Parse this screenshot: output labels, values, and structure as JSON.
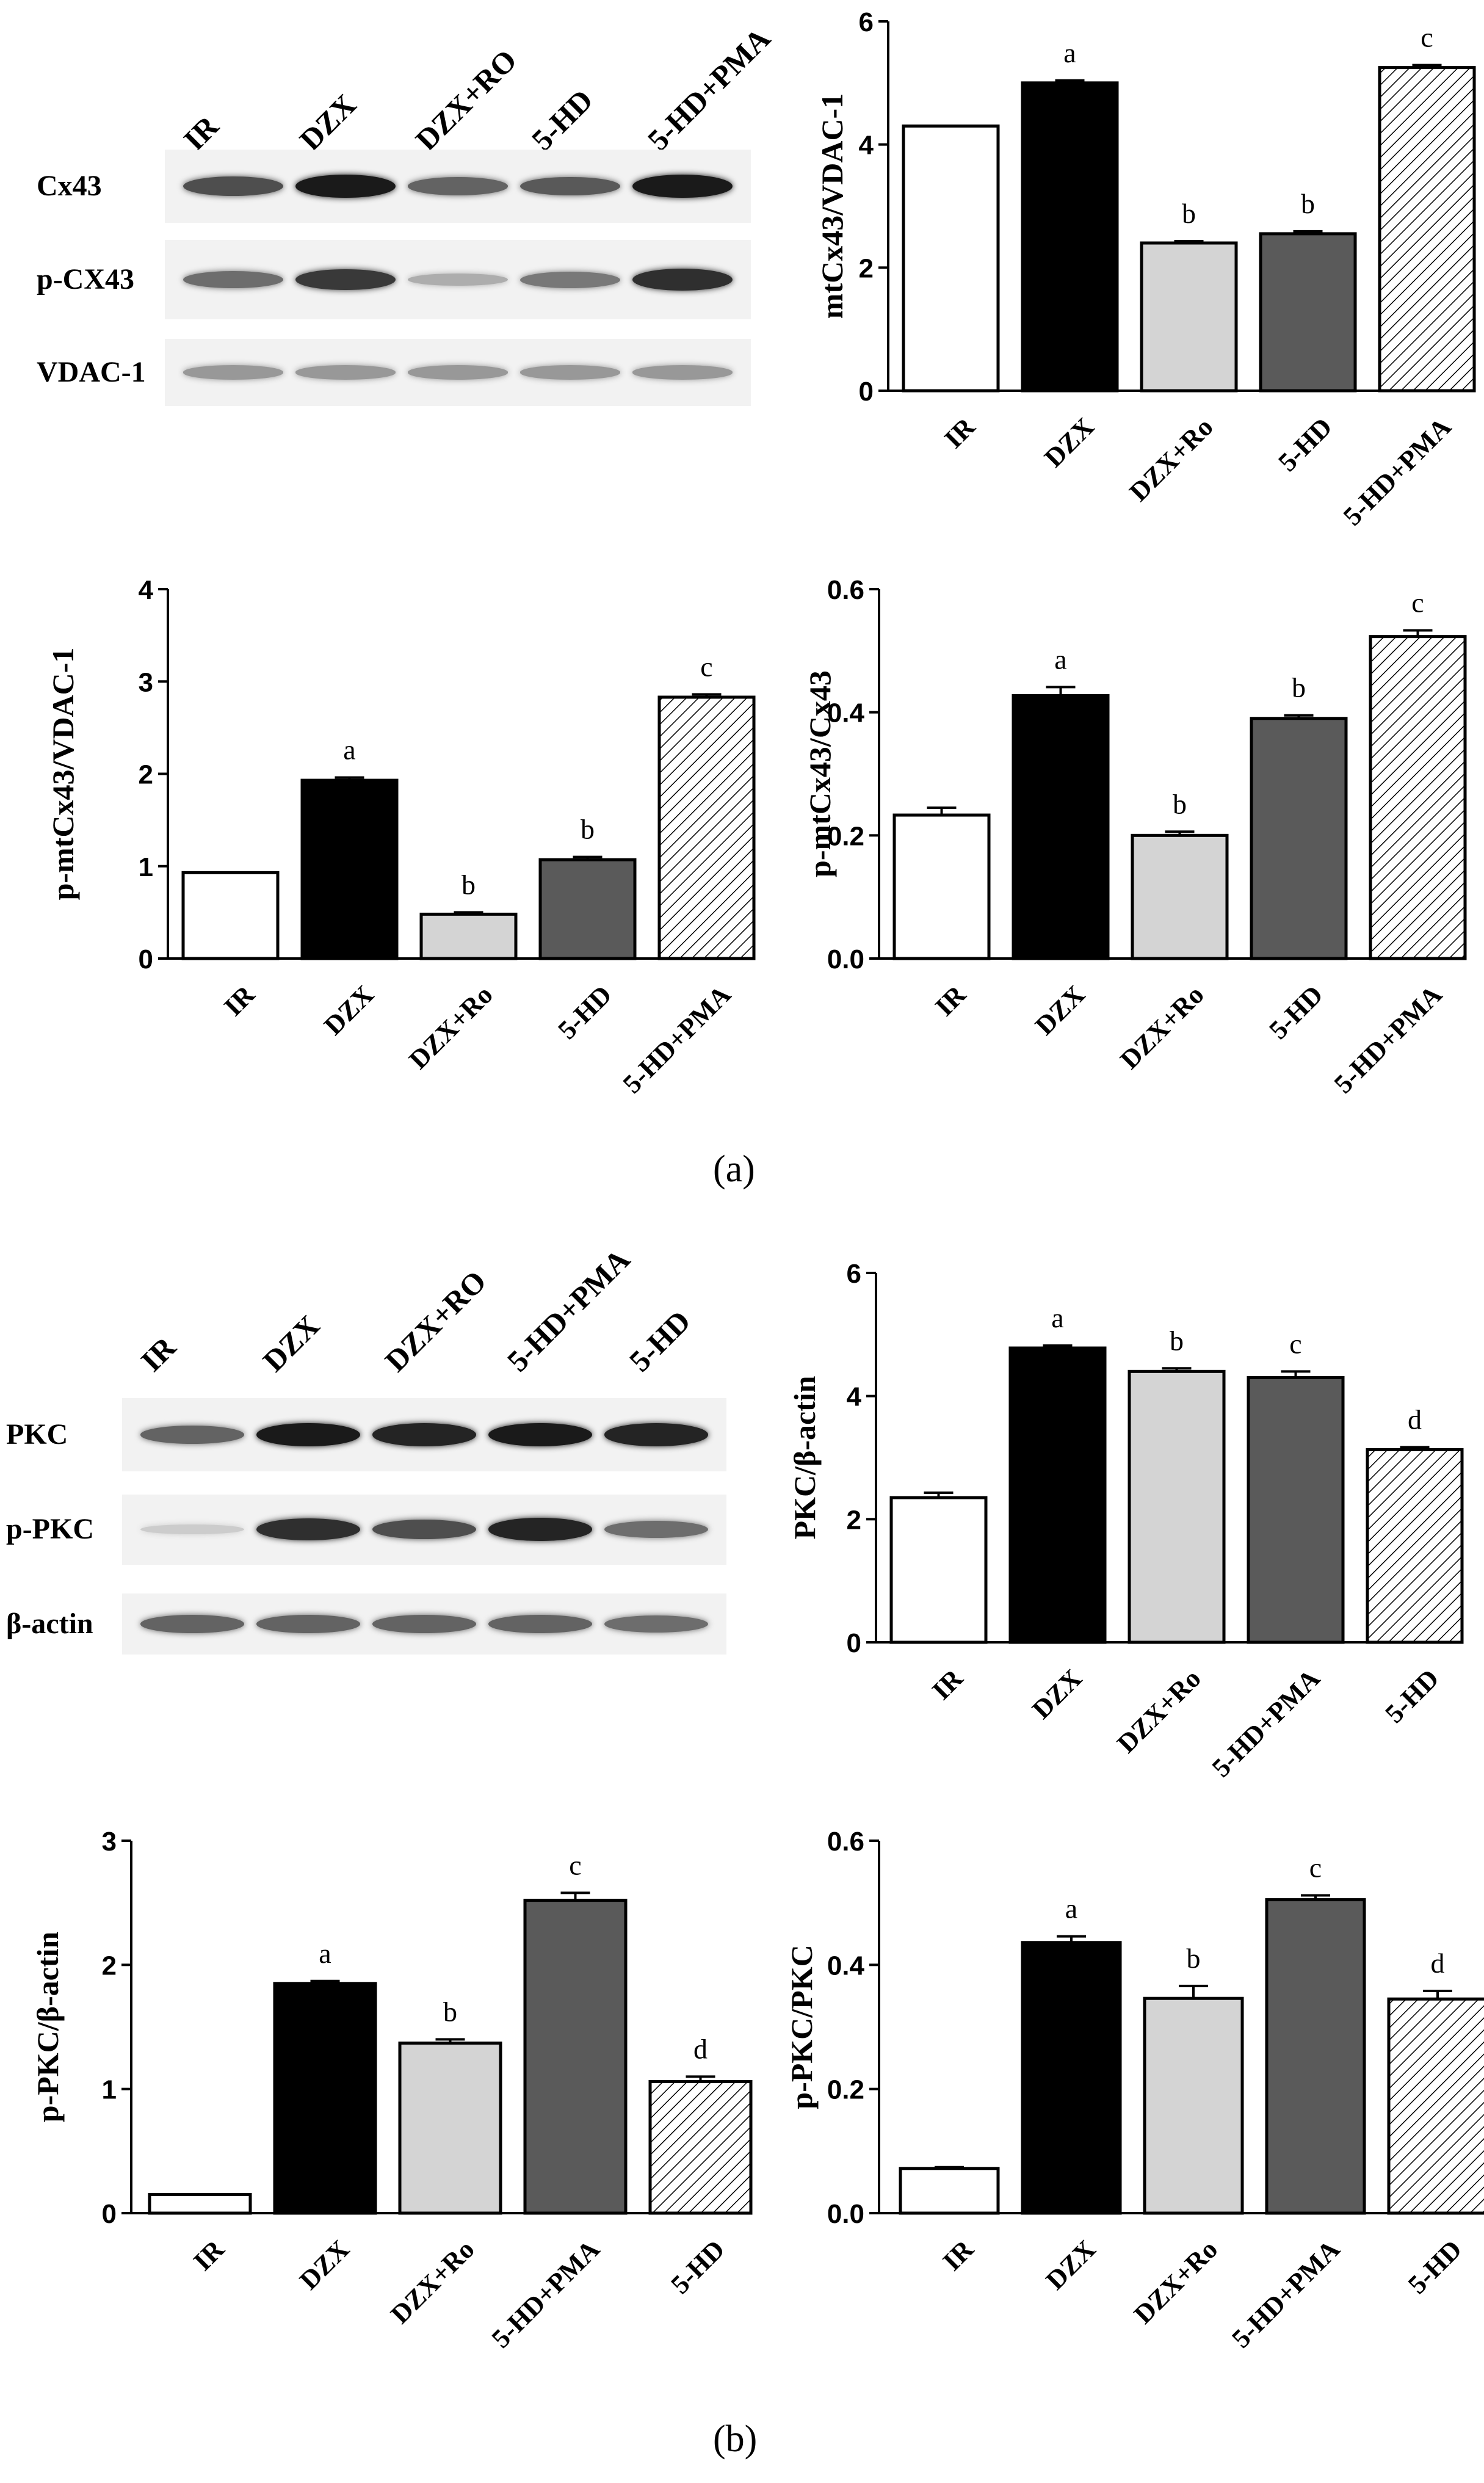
{
  "panels": [
    {
      "label": "(a)",
      "bold": "a"
    },
    {
      "label": "(b)",
      "bold": "b"
    }
  ],
  "blots": [
    {
      "lanes": [
        "IR",
        "DZX",
        "DZX+RO",
        "5-HD",
        "5-HD+PMA"
      ],
      "rows": [
        {
          "name": "Cx43",
          "intensity": [
            0.7,
            0.95,
            0.6,
            0.65,
            0.95
          ]
        },
        {
          "name": "p-CX43",
          "intensity": [
            0.55,
            0.8,
            0.25,
            0.5,
            0.85
          ]
        },
        {
          "name": "VDAC-1",
          "intensity": [
            0.35,
            0.35,
            0.35,
            0.35,
            0.35
          ]
        }
      ]
    },
    {
      "lanes": [
        "IR",
        "DZX",
        "DZX+RO",
        "5-HD+PMA",
        "5-HD"
      ],
      "rows": [
        {
          "name": "PKC",
          "intensity": [
            0.6,
            0.95,
            0.9,
            0.95,
            0.9
          ]
        },
        {
          "name": "p-PKC",
          "intensity": [
            0.1,
            0.85,
            0.7,
            0.9,
            0.55
          ]
        },
        {
          "name": "β-actin",
          "intensity": [
            0.6,
            0.6,
            0.6,
            0.6,
            0.55
          ]
        }
      ]
    }
  ],
  "chart_data": [
    {
      "type": "bar",
      "categories": [
        "IR",
        "DZX",
        "DZX+Ro",
        "5-HD",
        "5-HD+PMA"
      ],
      "values": [
        4.3,
        5.0,
        2.4,
        2.55,
        5.25
      ],
      "errors": [
        0.0,
        0.04,
        0.03,
        0.04,
        0.04
      ],
      "letters": [
        "",
        "a",
        "b",
        "b",
        "c"
      ],
      "fills": [
        "white",
        "black",
        "light",
        "dark",
        "hatch"
      ],
      "ylabel": "mtCx43/VDAC-1",
      "ylim": [
        0,
        6
      ],
      "yticks": [
        0,
        2,
        4,
        6
      ],
      "tick_labels": [
        "0",
        "2",
        "4",
        "6"
      ]
    },
    {
      "type": "bar",
      "categories": [
        "IR",
        "DZX",
        "DZX+Ro",
        "5-HD",
        "5-HD+PMA"
      ],
      "values": [
        0.93,
        1.93,
        0.48,
        1.07,
        2.83
      ],
      "errors": [
        0.0,
        0.03,
        0.02,
        0.03,
        0.03
      ],
      "letters": [
        "",
        "a",
        "b",
        "b",
        "c"
      ],
      "fills": [
        "white",
        "black",
        "light",
        "dark",
        "hatch"
      ],
      "ylabel": "p-mtCx43/VDAC-1",
      "ylim": [
        0,
        4
      ],
      "yticks": [
        0,
        1,
        2,
        3,
        4
      ],
      "tick_labels": [
        "0",
        "1",
        "2",
        "3",
        "4"
      ]
    },
    {
      "type": "bar",
      "categories": [
        "IR",
        "DZX",
        "DZX+Ro",
        "5-HD",
        "5-HD+PMA"
      ],
      "values": [
        0.233,
        0.427,
        0.2,
        0.39,
        0.523
      ],
      "errors": [
        0.012,
        0.014,
        0.006,
        0.005,
        0.01
      ],
      "letters": [
        "",
        "a",
        "b",
        "b",
        "c"
      ],
      "fills": [
        "white",
        "black",
        "light",
        "dark",
        "hatch"
      ],
      "ylabel": "p-mtCx43/Cx43",
      "ylim": [
        0,
        0.6
      ],
      "yticks": [
        0,
        0.2,
        0.4,
        0.6
      ],
      "tick_labels": [
        "0.0",
        "0.2",
        "0.4",
        "0.6"
      ]
    },
    {
      "type": "bar",
      "categories": [
        "IR",
        "DZX",
        "DZX+Ro",
        "5-HD+PMA",
        "5-HD"
      ],
      "values": [
        2.35,
        4.78,
        4.4,
        4.3,
        3.13
      ],
      "errors": [
        0.08,
        0.04,
        0.05,
        0.1,
        0.04
      ],
      "letters": [
        "",
        "a",
        "b",
        "c",
        "d"
      ],
      "fills": [
        "white",
        "black",
        "light",
        "dark",
        "hatch"
      ],
      "ylabel": "PKC/β-actin",
      "ylim": [
        0,
        6
      ],
      "yticks": [
        0,
        2,
        4,
        6
      ],
      "tick_labels": [
        "0",
        "2",
        "4",
        "6"
      ]
    },
    {
      "type": "bar",
      "categories": [
        "IR",
        "DZX",
        "DZX+Ro",
        "5-HD+PMA",
        "5-HD"
      ],
      "values": [
        0.15,
        1.85,
        1.37,
        2.52,
        1.06
      ],
      "errors": [
        0.0,
        0.02,
        0.03,
        0.06,
        0.04
      ],
      "letters": [
        "",
        "a",
        "b",
        "c",
        "d"
      ],
      "fills": [
        "white",
        "black",
        "light",
        "dark",
        "hatch"
      ],
      "ylabel": "p-PKC/β-actin",
      "ylim": [
        0,
        3
      ],
      "yticks": [
        0,
        1,
        2,
        3
      ],
      "tick_labels": [
        "0",
        "1",
        "2",
        "3"
      ]
    },
    {
      "type": "bar",
      "categories": [
        "IR",
        "DZX",
        "DZX+Ro",
        "5-HD+PMA",
        "5-HD"
      ],
      "values": [
        0.072,
        0.436,
        0.346,
        0.505,
        0.345
      ],
      "errors": [
        0.002,
        0.01,
        0.02,
        0.007,
        0.013
      ],
      "letters": [
        "",
        "a",
        "b",
        "c",
        "d"
      ],
      "fills": [
        "white",
        "black",
        "light",
        "dark",
        "hatch"
      ],
      "ylabel": "p-PKC/PKC",
      "ylim": [
        0,
        0.6
      ],
      "yticks": [
        0,
        0.2,
        0.4,
        0.6
      ],
      "tick_labels": [
        "0.0",
        "0.2",
        "0.4",
        "0.6"
      ]
    }
  ]
}
